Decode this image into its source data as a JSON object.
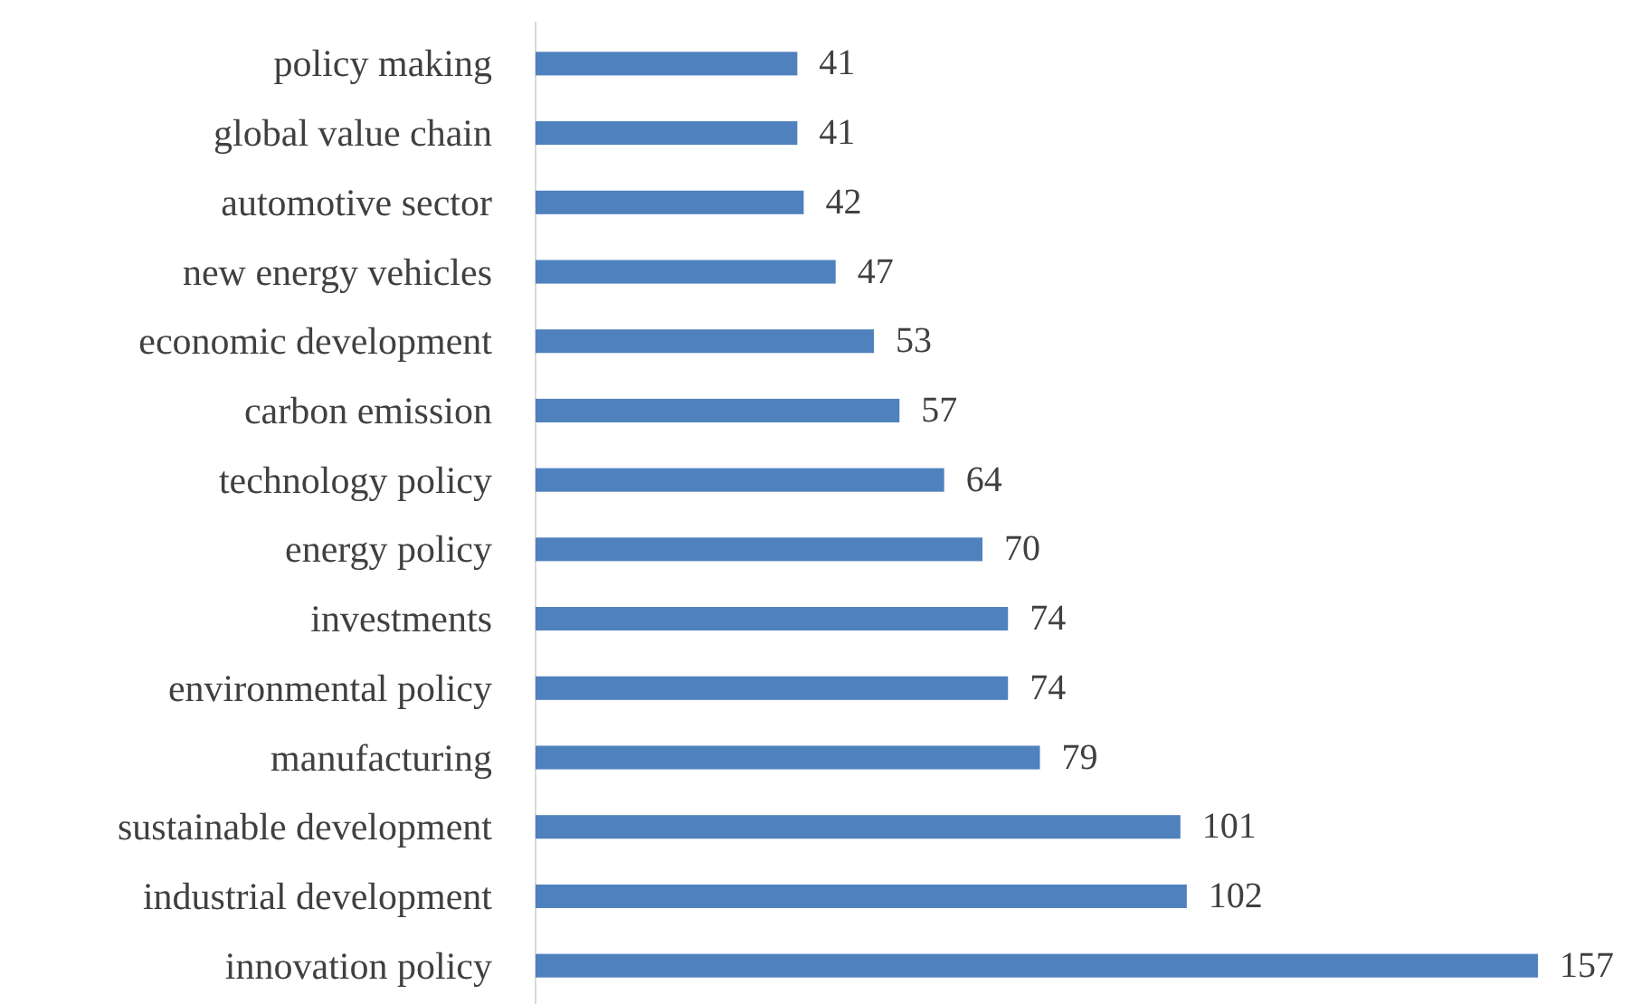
{
  "chart_data": {
    "type": "bar",
    "orientation": "horizontal",
    "categories": [
      "policy making",
      "global value chain",
      "automotive sector",
      "new energy vehicles",
      "economic development",
      "carbon emission",
      "technology policy",
      "energy policy",
      "investments",
      "environmental policy",
      "manufacturing",
      "sustainable development",
      "industrial development",
      "innovation policy"
    ],
    "values": [
      41,
      41,
      42,
      47,
      53,
      57,
      64,
      70,
      74,
      74,
      79,
      101,
      102,
      157
    ],
    "color": "#4f81bd",
    "data_labels": true
  }
}
